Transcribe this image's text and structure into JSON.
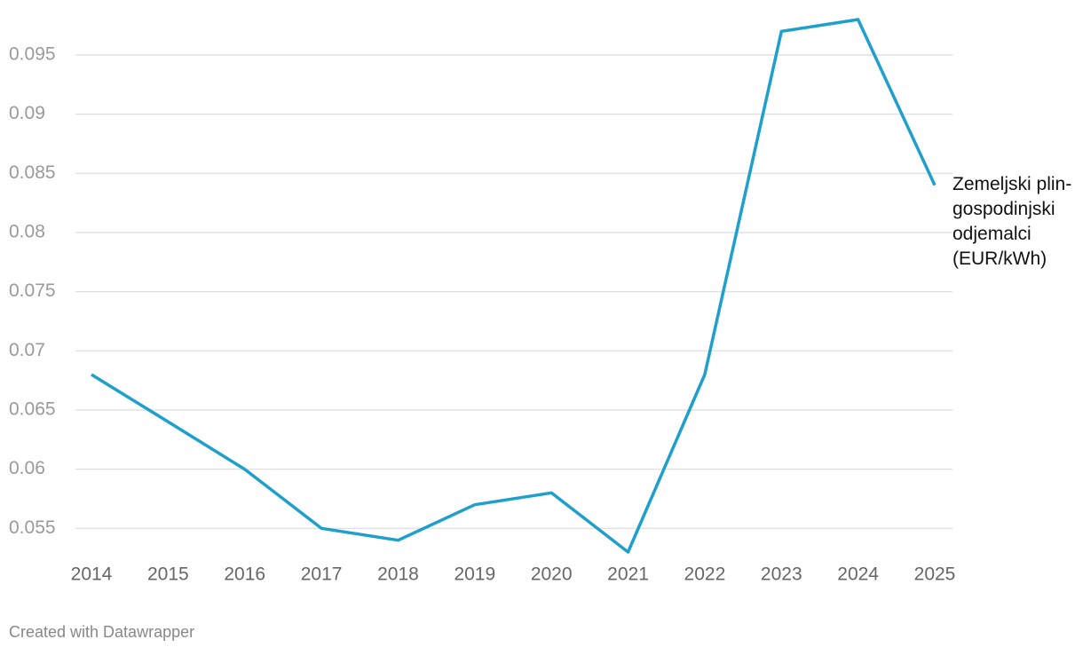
{
  "chart_data": {
    "type": "line",
    "x": [
      2014,
      2015,
      2016,
      2017,
      2018,
      2019,
      2020,
      2021,
      2022,
      2023,
      2024,
      2025
    ],
    "series": [
      {
        "name": "Zemeljski plin-gospodinjski odjemalci (EUR/kWh)",
        "color": "#1f9fcc",
        "values": [
          0.068,
          0.064,
          0.06,
          0.055,
          0.054,
          0.057,
          0.058,
          0.053,
          0.068,
          0.097,
          0.098,
          0.084
        ]
      }
    ],
    "xlim": [
      2014,
      2025
    ],
    "xticks": [
      2014,
      2015,
      2016,
      2017,
      2018,
      2019,
      2020,
      2021,
      2022,
      2023,
      2024,
      2025
    ],
    "ylim": [
      0.053,
      0.098
    ],
    "yticks": [
      0.055,
      0.06,
      0.065,
      0.07,
      0.075,
      0.08,
      0.085,
      0.09,
      0.095
    ],
    "grid": true,
    "footer": "Created with Datawrapper"
  }
}
